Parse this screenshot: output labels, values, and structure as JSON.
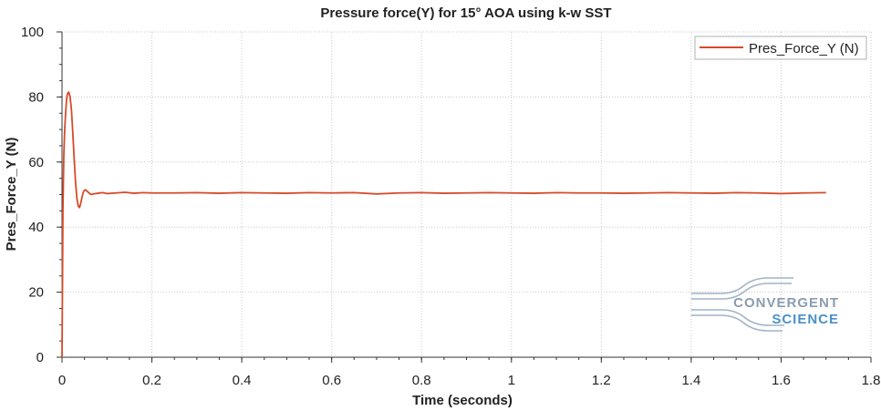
{
  "chart_data": {
    "type": "line",
    "title": "Pressure force(Y) for 15° AOA using k-w SST",
    "xlabel": "Time (seconds)",
    "ylabel": "Pres_Force_Y (N)",
    "xlim": [
      0,
      1.8
    ],
    "ylim": [
      0,
      100
    ],
    "x_ticks": [
      0,
      0.2,
      0.4,
      0.6,
      0.8,
      1,
      1.2,
      1.4,
      1.6,
      1.8
    ],
    "x_tick_labels": [
      "0",
      "0.2",
      "0.4",
      "0.6",
      "0.8",
      "1",
      "1.2",
      "1.4",
      "1.6",
      "1.8"
    ],
    "y_ticks": [
      0,
      20,
      40,
      60,
      80,
      100
    ],
    "y_tick_labels": [
      "0",
      "20",
      "40",
      "60",
      "80",
      "100"
    ],
    "grid": true,
    "legend_position": "top-right",
    "series": [
      {
        "name": "Pres_Force_Y (N)",
        "color": "#d64b2a",
        "x": [
          0.0,
          0.002,
          0.004,
          0.006,
          0.008,
          0.01,
          0.012,
          0.015,
          0.018,
          0.021,
          0.024,
          0.027,
          0.03,
          0.033,
          0.036,
          0.039,
          0.042,
          0.045,
          0.048,
          0.052,
          0.056,
          0.06,
          0.065,
          0.07,
          0.08,
          0.09,
          0.1,
          0.12,
          0.14,
          0.16,
          0.18,
          0.2,
          0.25,
          0.3,
          0.35,
          0.4,
          0.45,
          0.5,
          0.55,
          0.6,
          0.65,
          0.7,
          0.75,
          0.8,
          0.85,
          0.9,
          0.95,
          1.0,
          1.05,
          1.1,
          1.15,
          1.2,
          1.25,
          1.3,
          1.35,
          1.4,
          1.45,
          1.5,
          1.55,
          1.6,
          1.65,
          1.7
        ],
        "values": [
          0,
          45,
          62,
          70,
          75,
          79,
          81,
          81.5,
          80,
          76,
          69,
          61,
          54,
          49,
          46.5,
          46,
          47.5,
          49.5,
          51,
          51.5,
          51,
          50.5,
          50,
          50.2,
          50.4,
          50.6,
          50.3,
          50.5,
          50.7,
          50.4,
          50.6,
          50.5,
          50.5,
          50.6,
          50.4,
          50.6,
          50.5,
          50.4,
          50.6,
          50.5,
          50.6,
          50.2,
          50.5,
          50.6,
          50.4,
          50.5,
          50.6,
          50.5,
          50.4,
          50.6,
          50.5,
          50.5,
          50.4,
          50.5,
          50.6,
          50.5,
          50.4,
          50.6,
          50.5,
          50.3,
          50.5,
          50.6
        ]
      }
    ]
  },
  "watermark": {
    "line1": "CONVERGENT",
    "line2": "SCIENCE"
  }
}
